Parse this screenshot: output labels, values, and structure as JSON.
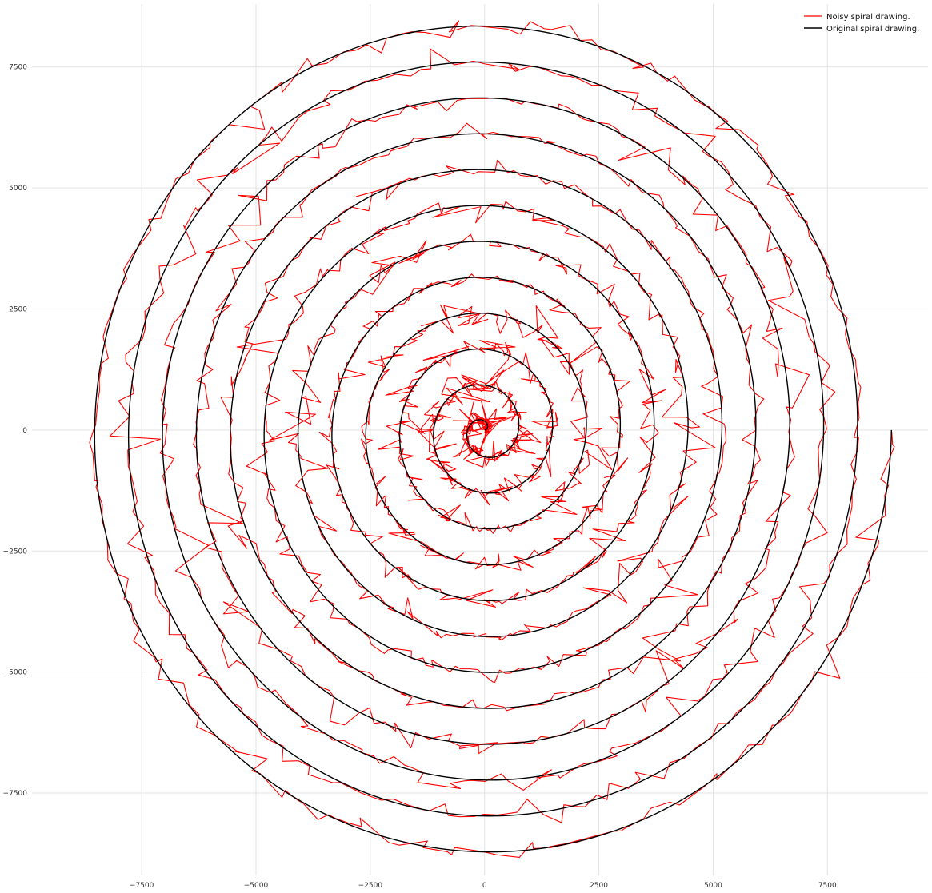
{
  "chart_data": {
    "type": "line",
    "title": "",
    "xlabel": "",
    "ylabel": "",
    "xlim": [
      -9900,
      9700
    ],
    "ylim": [
      -9200,
      8800
    ],
    "x_ticks": [
      -7500,
      -5000,
      -2500,
      0,
      2500,
      5000,
      7500
    ],
    "y_ticks": [
      7500,
      5000,
      2500,
      0,
      -2500,
      -5000,
      -7500
    ],
    "x_tick_labels": [
      "−7500",
      "−5000",
      "−2500",
      "0",
      "2500",
      "5000",
      "7500"
    ],
    "y_tick_labels": [
      "7500",
      "5000",
      "2500",
      "0",
      "−2500",
      "−5000",
      "−7500"
    ],
    "grid": true,
    "legend_position": "top-right",
    "spiral": {
      "form": "archimedean",
      "center": [
        0,
        0
      ],
      "start_radius": 0,
      "end_radius": 8900,
      "turns": 12,
      "end_point": [
        8900,
        0
      ],
      "direction": "counter-clockwise"
    },
    "series": [
      {
        "name": "Noisy spiral drawing.",
        "color": "#ff0000",
        "noise_amplitude": 700
      },
      {
        "name": "Original spiral drawing.",
        "color": "#000000"
      }
    ]
  }
}
